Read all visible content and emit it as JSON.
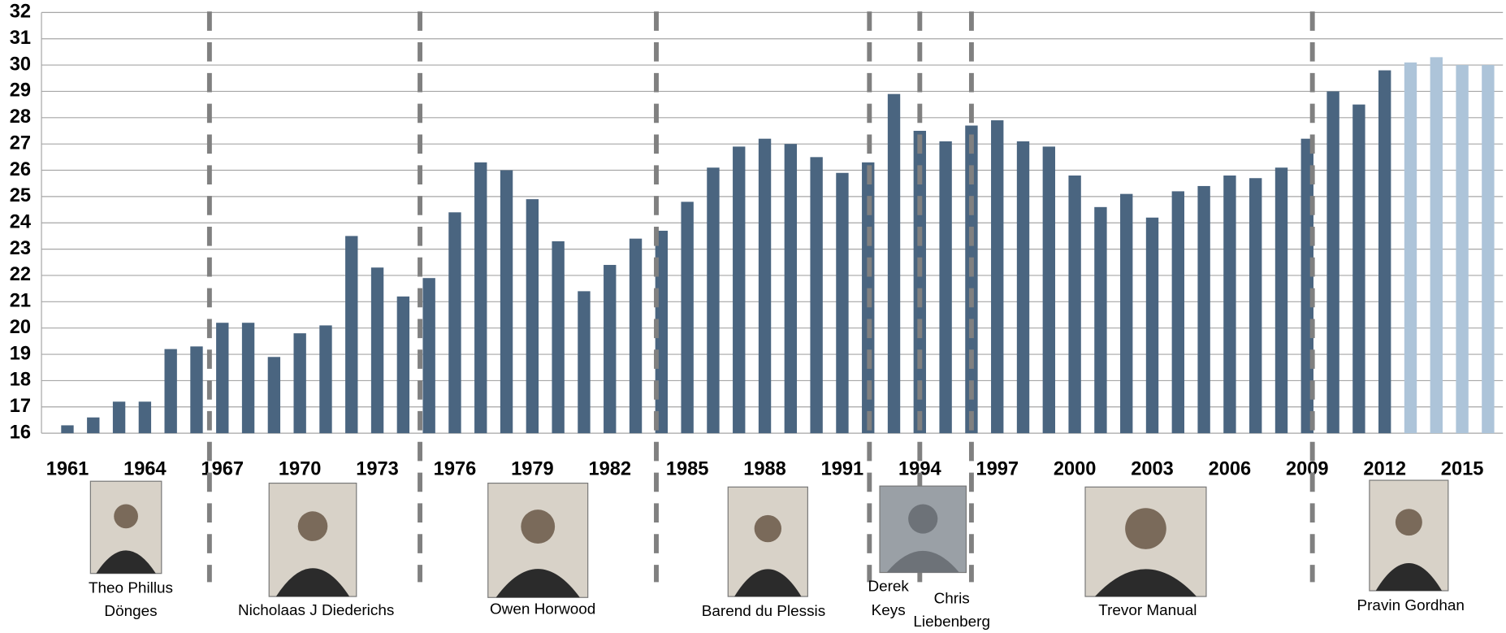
{
  "chart_data": {
    "type": "bar",
    "categories": [
      "1961",
      null,
      null,
      "1964",
      null,
      null,
      "1967",
      null,
      null,
      "1970",
      null,
      null,
      "1973",
      null,
      null,
      "1976",
      null,
      null,
      "1979",
      null,
      null,
      "1982",
      null,
      null,
      "1985",
      null,
      null,
      "1988",
      null,
      null,
      "1991",
      null,
      null,
      "1994",
      null,
      null,
      "1997",
      null,
      null,
      "2000",
      null,
      null,
      "2003",
      null,
      null,
      "2006",
      null,
      null,
      "2009",
      null,
      null,
      "2012",
      null,
      null,
      "2015",
      null
    ],
    "values": [
      16.3,
      16.6,
      17.2,
      17.2,
      19.2,
      19.3,
      20.2,
      20.2,
      18.9,
      19.8,
      20.1,
      23.5,
      22.3,
      21.2,
      21.9,
      24.4,
      26.3,
      26.0,
      24.9,
      23.3,
      21.4,
      22.4,
      23.4,
      23.7,
      24.8,
      26.1,
      26.9,
      27.2,
      27.0,
      26.5,
      25.9,
      26.3,
      28.9,
      27.5,
      27.1,
      27.7,
      27.9,
      27.1,
      26.9,
      25.8,
      24.6,
      25.1,
      24.2,
      25.2,
      25.4,
      25.8,
      25.7,
      26.1,
      27.2,
      29.0,
      28.5,
      29.8,
      30.1,
      30.3,
      30.0,
      30.0
    ],
    "colors": [
      "#4a6580",
      "#4a6580",
      "#4a6580",
      "#4a6580",
      "#4a6580",
      "#4a6580",
      "#4a6580",
      "#4a6580",
      "#4a6580",
      "#4a6580",
      "#4a6580",
      "#4a6580",
      "#4a6580",
      "#4a6580",
      "#4a6580",
      "#4a6580",
      "#4a6580",
      "#4a6580",
      "#4a6580",
      "#4a6580",
      "#4a6580",
      "#4a6580",
      "#4a6580",
      "#4a6580",
      "#4a6580",
      "#4a6580",
      "#4a6580",
      "#4a6580",
      "#4a6580",
      "#4a6580",
      "#4a6580",
      "#4a6580",
      "#4a6580",
      "#4a6580",
      "#4a6580",
      "#4a6580",
      "#4a6580",
      "#4a6580",
      "#4a6580",
      "#4a6580",
      "#4a6580",
      "#4a6580",
      "#4a6580",
      "#4a6580",
      "#4a6580",
      "#4a6580",
      "#4a6580",
      "#4a6580",
      "#4a6580",
      "#4a6580",
      "#4a6580",
      "#4a6580",
      "#adc4d9",
      "#adc4d9",
      "#adc4d9",
      "#adc4d9"
    ],
    "ylim": [
      16,
      32
    ],
    "yticks": [
      16,
      17,
      18,
      19,
      20,
      21,
      22,
      23,
      24,
      25,
      26,
      27,
      28,
      29,
      30,
      31,
      32
    ],
    "grid": true
  },
  "ministers": [
    {
      "name_lines": [
        "Theo Phillus",
        "Dönges"
      ]
    },
    {
      "name_lines": [
        "Nicholaas J Diederichs"
      ]
    },
    {
      "name_lines": [
        "Owen Horwood"
      ]
    },
    {
      "name_lines": [
        "Barend du Plessis"
      ]
    },
    {
      "name_lines": [
        "Derek",
        "Keys"
      ]
    },
    {
      "name_lines": [
        "Chris",
        "Liebenberg"
      ]
    },
    {
      "name_lines": [
        "Trevor Manual"
      ]
    },
    {
      "name_lines": [
        "Pravin Gordhan"
      ]
    }
  ]
}
